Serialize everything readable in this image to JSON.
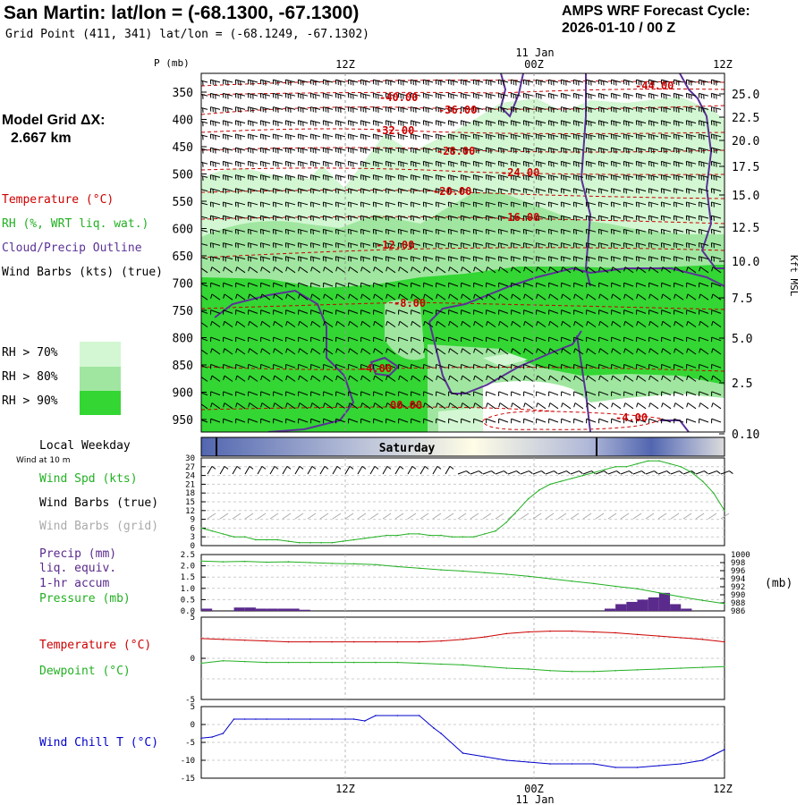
{
  "header": {
    "title": "San Martin:  lat/lon = (-68.1300, -67.1300)",
    "subtitle": "Grid Point (411, 341) lat/lon = (-68.1249, -67.1302)",
    "cycle_line1": "AMPS WRF Forecast Cycle:",
    "cycle_line2": "2026-01-10 / 00  Z"
  },
  "left_panel": {
    "grid_label": "Model Grid ΔX:",
    "grid_value": "2.667 km",
    "legend_temp": "Temperature (°C)",
    "legend_rh": "RH (%, WRT liq. wat.)",
    "legend_cloud": "Cloud/Precip Outline",
    "legend_wind": "Wind Barbs (kts) (true)",
    "rh70": "RH > 70%",
    "rh80": "RH > 80%",
    "rh90": "RH > 90%",
    "local_weekday": "Local Weekday",
    "wind_at": "Wind at 10 m",
    "wind_spd": "Wind Spd (kts)",
    "wind_barbs_true": "Wind Barbs (true)",
    "wind_barbs_grid": "Wind Barbs (grid)",
    "precip1": "Precip (mm)",
    "precip2": "liq. equiv.",
    "precip3": "1-hr accum",
    "pressure": "Pressure (mb)",
    "temperature": "Temperature (°C)",
    "dewpoint": "Dewpoint (°C)",
    "wind_chill": "Wind Chill T (°C)"
  },
  "colors": {
    "rh70": "#d2f7d2",
    "rh80": "#a0e6a0",
    "rh90": "#33d633",
    "temperature": "#cc0000",
    "cloud": "#5a3296",
    "wind_speed": "#22b022",
    "precip": "#5a2a8c",
    "pressure": "#22b022",
    "dewpoint": "#22b022",
    "wind_chill": "#0000cc",
    "weekday_dark": "#5266b0",
    "weekday_light": "#fffde6"
  },
  "time_axis": {
    "top_labels": [
      "12Z",
      "00Z",
      "12Z"
    ],
    "top_date": "11 Jan",
    "bottom_labels": [
      "12Z",
      "00Z",
      "12Z"
    ],
    "bottom_date": "11 Jan",
    "weekday": "Saturday"
  },
  "chart_data": [
    {
      "type": "heatmap",
      "name": "cross_section",
      "y_axis_label": "P (mb)",
      "pressure_ticks": [
        "350",
        "400",
        "450",
        "500",
        "550",
        "600",
        "650",
        "700",
        "750",
        "800",
        "850",
        "900",
        "950"
      ],
      "right_axis_label": "Kft MSL",
      "height_ticks": [
        "25.0",
        "22.5",
        "20.0",
        "17.5",
        "15.0",
        "12.5",
        "10.0",
        "7.5",
        "5.0",
        "2.5",
        "0.10"
      ],
      "temperature_contour_labels": [
        "-40.00",
        "-36.00",
        "-32.00",
        "-28.00",
        "-24.00",
        "-20.00",
        "-16.00",
        "-12.00",
        "-8.00",
        "-4.00",
        "00.00",
        "-4.00",
        "-44.00"
      ]
    },
    {
      "type": "line",
      "name": "wind_speed",
      "yticks": [
        "30",
        "27",
        "24",
        "21",
        "18",
        "15",
        "12",
        "9",
        "6",
        "3",
        "0"
      ],
      "ylim": [
        0,
        30
      ],
      "x_hours": [
        0,
        3,
        6,
        9,
        12,
        15,
        18,
        21,
        24,
        27,
        30,
        33,
        36,
        39,
        42,
        45,
        48,
        51,
        54,
        57,
        60,
        63,
        66,
        69,
        72,
        75,
        78,
        81,
        84,
        87,
        90,
        93,
        96,
        99,
        102,
        105,
        108,
        111,
        114,
        117,
        120,
        123,
        126,
        129,
        132,
        135,
        138,
        141,
        144
      ],
      "values": [
        6,
        5,
        4,
        3,
        3,
        2,
        2,
        2,
        1.5,
        1,
        1,
        1,
        1,
        1.5,
        2,
        2.5,
        3,
        3.5,
        3.5,
        4,
        4,
        3.5,
        3.5,
        3,
        3,
        3,
        4,
        5,
        8,
        12,
        16,
        19,
        21,
        22,
        23,
        24,
        25,
        26,
        27,
        27,
        28,
        29,
        29,
        28,
        27,
        25,
        22,
        18,
        12
      ]
    },
    {
      "type": "bar",
      "name": "precip_pressure",
      "precip_ticks": [
        "2.5",
        "2.0",
        "1.5",
        "1.0",
        "0.5",
        "0.0"
      ],
      "pressure_ticks": [
        "1000",
        "998",
        "996",
        "994",
        "992",
        "990",
        "988",
        "986"
      ],
      "pressure_unit": "(mb)",
      "precip_ylim": [
        0,
        2.5
      ],
      "pressure_ylim": [
        986,
        1000
      ],
      "precip_hours": [
        0,
        9,
        12,
        15,
        18,
        21,
        24,
        27,
        111,
        114,
        117,
        120,
        123,
        126,
        129,
        132
      ],
      "precip_values": [
        0.1,
        0.15,
        0.15,
        0.1,
        0.1,
        0.1,
        0.1,
        0.05,
        0.1,
        0.3,
        0.4,
        0.5,
        0.6,
        0.8,
        0.3,
        0.1
      ],
      "pressure_hours": [
        0,
        6,
        12,
        18,
        24,
        30,
        36,
        42,
        48,
        54,
        60,
        66,
        72,
        78,
        84,
        90,
        96,
        102,
        108,
        114,
        120,
        126,
        132,
        138,
        144
      ],
      "pressure_values": [
        998.4,
        998.2,
        998.3,
        998.1,
        998.2,
        998,
        997.8,
        997.7,
        997.5,
        997,
        996.6,
        996.2,
        995.9,
        995.5,
        995.1,
        994.6,
        994,
        993.4,
        992.8,
        992.1,
        991.5,
        990.5,
        989.5,
        988.6,
        987.8
      ]
    },
    {
      "type": "line",
      "name": "temp_dewpoint",
      "yticks": [
        "5",
        "0",
        "-5"
      ],
      "ylim": [
        -5,
        5
      ],
      "x_hours": [
        0,
        6,
        12,
        18,
        24,
        30,
        36,
        42,
        48,
        54,
        60,
        66,
        72,
        78,
        84,
        90,
        96,
        102,
        108,
        114,
        120,
        126,
        132,
        138,
        144
      ],
      "temperature": [
        2.4,
        2.3,
        2.2,
        2.1,
        2,
        2,
        2,
        2,
        2,
        2,
        2,
        2.1,
        2.3,
        2.6,
        3,
        3.2,
        3.3,
        3.3,
        3.2,
        3.1,
        2.9,
        2.7,
        2.5,
        2.3,
        2
      ],
      "dewpoint": [
        -0.6,
        -0.3,
        -0.4,
        -0.5,
        -0.5,
        -0.5,
        -0.5,
        -0.5,
        -0.5,
        -0.5,
        -0.6,
        -0.7,
        -0.8,
        -1,
        -1.2,
        -1.3,
        -1.5,
        -1.6,
        -1.6,
        -1.5,
        -1.4,
        -1.3,
        -1.2,
        -1.1,
        -1
      ]
    },
    {
      "type": "line",
      "name": "wind_chill",
      "yticks": [
        "5",
        "0",
        "-5",
        "-10",
        "-15"
      ],
      "ylim": [
        -15,
        5
      ],
      "x_hours": [
        0,
        3,
        6,
        9,
        12,
        15,
        18,
        24,
        30,
        36,
        42,
        45,
        48,
        54,
        60,
        64,
        66,
        72,
        78,
        84,
        90,
        96,
        102,
        108,
        114,
        120,
        126,
        132,
        138,
        141,
        144
      ],
      "values": [
        -3.8,
        -3.5,
        -2.5,
        1.5,
        1.5,
        1.5,
        1.5,
        1.5,
        1.5,
        1.5,
        1.5,
        1,
        2.5,
        2.5,
        2.5,
        -1,
        -2.5,
        -8,
        -9,
        -10,
        -10.5,
        -11,
        -11,
        -11,
        -12,
        -12,
        -11.5,
        -11,
        -10,
        -8.5,
        -7
      ]
    }
  ]
}
